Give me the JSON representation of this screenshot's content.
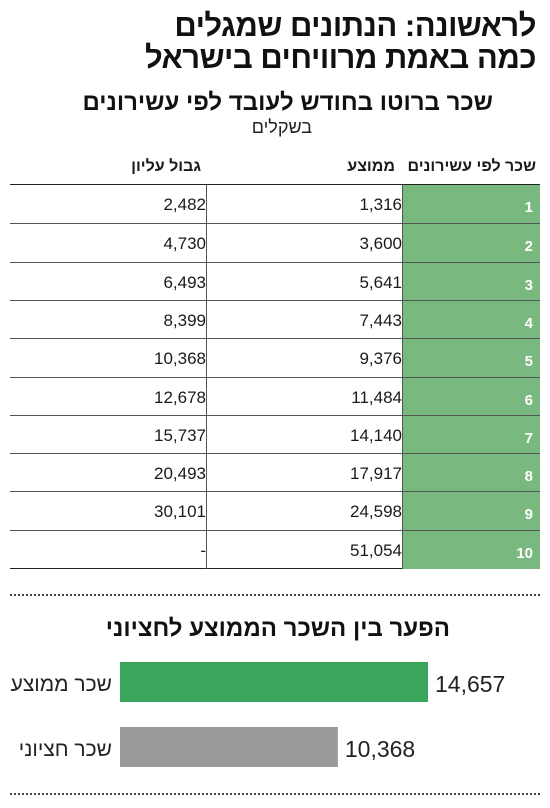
{
  "header": {
    "title_line1": "לראשונה: הנתונים שמגלים",
    "title_line2": "כמה באמת מרוויחים בישראל"
  },
  "table": {
    "title": "שכר ברוטו בחודש לעובד לפי עשירונים",
    "subtitle": "בשקלים",
    "columns": {
      "decile": "שכר לפי עשירונים",
      "average": "ממוצע",
      "upper_bound": "גבול עליון"
    },
    "rows": [
      {
        "decile": "1",
        "average": "1,316",
        "upper_bound": "2,482"
      },
      {
        "decile": "2",
        "average": "3,600",
        "upper_bound": "4,730"
      },
      {
        "decile": "3",
        "average": "5,641",
        "upper_bound": "6,493"
      },
      {
        "decile": "4",
        "average": "7,443",
        "upper_bound": "8,399"
      },
      {
        "decile": "5",
        "average": "9,376",
        "upper_bound": "10,368"
      },
      {
        "decile": "6",
        "average": "11,484",
        "upper_bound": "12,678"
      },
      {
        "decile": "7",
        "average": "14,140",
        "upper_bound": "15,737"
      },
      {
        "decile": "8",
        "average": "17,917",
        "upper_bound": "20,493"
      },
      {
        "decile": "9",
        "average": "24,598",
        "upper_bound": "30,101"
      },
      {
        "decile": "10",
        "average": "51,054",
        "upper_bound": "-"
      }
    ],
    "decile_color": "#79b87e"
  },
  "chart_data": {
    "type": "bar",
    "title": "הפער בין השכר הממוצע לחציוני",
    "categories": [
      "שכר ממוצע",
      "שכר חציוני"
    ],
    "values": [
      14657,
      10368
    ],
    "value_labels": [
      "14,657",
      "10,368"
    ],
    "colors": [
      "#3aa65c",
      "#9a9a9d"
    ],
    "xlim": [
      0,
      14657
    ],
    "orientation": "horizontal",
    "xlabel": "",
    "ylabel": ""
  }
}
